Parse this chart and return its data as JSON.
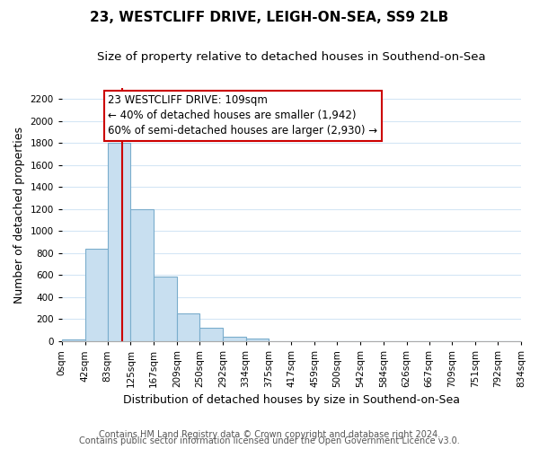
{
  "title1": "23, WESTCLIFF DRIVE, LEIGH-ON-SEA, SS9 2LB",
  "title2": "Size of property relative to detached houses in Southend-on-Sea",
  "xlabel": "Distribution of detached houses by size in Southend-on-Sea",
  "ylabel": "Number of detached properties",
  "footnote1": "Contains HM Land Registry data © Crown copyright and database right 2024.",
  "footnote2": "Contains public sector information licensed under the Open Government Licence v3.0.",
  "bar_edges": [
    0,
    42,
    83,
    125,
    167,
    209,
    250,
    292,
    334,
    375,
    417,
    459,
    500,
    542,
    584,
    626,
    667,
    709,
    751,
    792,
    834
  ],
  "bar_heights": [
    20,
    840,
    1800,
    1200,
    590,
    255,
    125,
    40,
    25,
    0,
    0,
    0,
    0,
    0,
    0,
    0,
    0,
    0,
    0,
    0
  ],
  "bar_color": "#c8dff0",
  "bar_edge_color": "#7aadcc",
  "grid_color": "#d4e6f5",
  "vline_x": 109,
  "vline_color": "#cc0000",
  "annotation_text": "23 WESTCLIFF DRIVE: 109sqm\n← 40% of detached houses are smaller (1,942)\n60% of semi-detached houses are larger (2,930) →",
  "annotation_box_color": "white",
  "annotation_box_edge": "#cc0000",
  "ylim": [
    0,
    2300
  ],
  "yticks": [
    0,
    200,
    400,
    600,
    800,
    1000,
    1200,
    1400,
    1600,
    1800,
    2000,
    2200
  ],
  "tick_labels": [
    "0sqm",
    "42sqm",
    "83sqm",
    "125sqm",
    "167sqm",
    "209sqm",
    "250sqm",
    "292sqm",
    "334sqm",
    "375sqm",
    "417sqm",
    "459sqm",
    "500sqm",
    "542sqm",
    "584sqm",
    "626sqm",
    "667sqm",
    "709sqm",
    "751sqm",
    "792sqm",
    "834sqm"
  ],
  "title1_fontsize": 11,
  "title2_fontsize": 9.5,
  "xlabel_fontsize": 9,
  "ylabel_fontsize": 9,
  "tick_fontsize": 7.5,
  "footnote_fontsize": 7,
  "annotation_fontsize": 8.5
}
